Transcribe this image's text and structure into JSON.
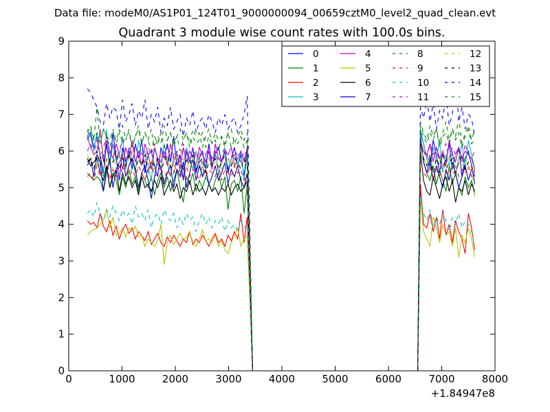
{
  "suptitle": "Data file: modeM0/AS1P01_124T01_9000000094_00659cztM0_level2_quad_clean.evt",
  "chart_data": {
    "type": "line",
    "title": "Quadrant 3 module wise count rates with 100.0s bins.",
    "xlabel": "",
    "ylabel": "",
    "x_offset_label": "+1.84947e8",
    "xlim": [
      0,
      8000
    ],
    "ylim": [
      0,
      9
    ],
    "xticks": [
      0,
      1000,
      2000,
      3000,
      4000,
      5000,
      6000,
      7000,
      8000
    ],
    "yticks": [
      0,
      1,
      2,
      3,
      4,
      5,
      6,
      7,
      8,
      9
    ],
    "grid": false,
    "legend_position": "top-right",
    "legend_columns": 4,
    "segment1": {
      "start": 350,
      "step": 60,
      "count": 51
    },
    "gap": {
      "x": [
        3450,
        3550,
        6450,
        6550
      ]
    },
    "segment2": {
      "start": 6600,
      "step": 60,
      "count": 18
    },
    "series": [
      {
        "name": "0",
        "color": "#0000ff",
        "dash": "solid",
        "seg1": [
          6.3,
          6.5,
          6.1,
          6.4,
          5.9,
          5.4,
          6.2,
          5.6,
          6.5,
          5.8,
          5.2,
          6.1,
          5.7,
          6.0,
          5.5,
          6.2,
          5.8,
          6.3,
          5.4,
          5.9,
          6.0,
          5.6,
          5.3,
          6.1,
          5.8,
          6.2,
          5.7,
          6.4,
          5.6,
          5.9,
          5.2,
          6.0,
          5.7,
          6.1,
          5.4,
          5.8,
          6.0,
          5.5,
          6.2,
          5.6,
          5.9,
          6.1,
          5.7,
          6.0,
          5.4,
          5.8,
          6.1,
          5.6,
          5.9,
          5.3,
          6.1
        ],
        "seg2": [
          6.5,
          6.2,
          5.8,
          5.6,
          6.3,
          5.9,
          5.4,
          6.0,
          5.7,
          6.2,
          5.5,
          5.9,
          6.1,
          5.3,
          5.8,
          6.0,
          5.6,
          5.1
        ]
      },
      {
        "name": "1",
        "color": "#008000",
        "dash": "solid",
        "seg1": [
          5.4,
          5.3,
          5.2,
          5.3,
          5.2,
          4.9,
          5.6,
          5.0,
          5.4,
          5.2,
          4.8,
          5.3,
          5.0,
          5.5,
          5.1,
          5.3,
          4.9,
          5.4,
          5.2,
          5.0,
          5.3,
          4.8,
          5.2,
          5.4,
          5.0,
          5.3,
          4.9,
          5.2,
          5.5,
          5.0,
          4.6,
          5.3,
          5.1,
          5.4,
          4.9,
          5.2,
          5.0,
          5.3,
          5.1,
          4.9,
          5.2,
          5.4,
          5.0,
          5.3,
          4.4,
          5.1,
          5.2,
          4.9,
          5.3,
          4.3,
          5.1
        ],
        "seg2": [
          6.3,
          5.7,
          5.4,
          5.2,
          5.6,
          5.1,
          5.5,
          5.2,
          4.9,
          5.6,
          5.1,
          5.4,
          5.0,
          4.8,
          5.3,
          5.0,
          5.2,
          4.8
        ]
      },
      {
        "name": "2",
        "color": "#ff0000",
        "dash": "solid",
        "seg1": [
          4.1,
          4.0,
          4.05,
          3.9,
          4.3,
          3.95,
          3.8,
          4.1,
          3.7,
          3.95,
          3.6,
          3.85,
          4.0,
          3.75,
          3.9,
          3.6,
          3.8,
          3.7,
          3.55,
          3.8,
          3.45,
          3.6,
          3.75,
          3.5,
          3.4,
          3.65,
          3.5,
          3.7,
          3.55,
          3.4,
          3.6,
          3.5,
          3.8,
          3.45,
          3.6,
          3.5,
          3.7,
          3.55,
          3.4,
          3.6,
          3.75,
          3.5,
          3.6,
          3.4,
          3.7,
          3.55,
          3.8,
          3.6,
          4.3,
          3.5,
          4.2
        ],
        "seg2": [
          5.1,
          4.0,
          3.9,
          4.3,
          3.8,
          4.2,
          3.6,
          4.4,
          3.7,
          4.0,
          3.5,
          4.1,
          3.8,
          3.6,
          3.2,
          4.3,
          3.9,
          3.3
        ]
      },
      {
        "name": "3",
        "color": "#00bfbf",
        "dash": "solid",
        "seg1": [
          6.6,
          6.4,
          6.0,
          6.5,
          5.8,
          5.3,
          6.6,
          5.6,
          6.2,
          5.7,
          5.9,
          6.4,
          5.5,
          6.1,
          5.8,
          5.4,
          6.3,
          5.9,
          6.0,
          5.6,
          5.2,
          6.1,
          5.8,
          5.5,
          6.2,
          5.7,
          5.3,
          5.9,
          6.0,
          5.4,
          5.6,
          6.1,
          5.8,
          5.5,
          6.0,
          5.7,
          5.3,
          5.9,
          5.8,
          5.6,
          6.0,
          5.4,
          5.7,
          6.1,
          5.5,
          5.8,
          5.9,
          5.6,
          6.0,
          5.2,
          5.9
        ],
        "seg2": [
          6.6,
          6.2,
          5.8,
          5.5,
          6.1,
          5.7,
          6.3,
          5.4,
          5.9,
          5.6,
          6.0,
          5.3,
          5.8,
          6.2,
          5.5,
          6.3,
          5.9,
          5.5
        ]
      },
      {
        "name": "4",
        "color": "#bf00bf",
        "dash": "solid",
        "seg1": [
          6.4,
          6.1,
          5.9,
          6.0,
          6.6,
          5.7,
          6.3,
          6.0,
          5.8,
          6.2,
          5.9,
          5.5,
          6.1,
          5.8,
          6.3,
          5.7,
          6.0,
          5.6,
          6.2,
          5.9,
          5.5,
          6.1,
          5.8,
          5.7,
          6.0,
          5.6,
          6.2,
          5.8,
          5.9,
          5.5,
          6.1,
          5.7,
          6.0,
          5.8,
          5.6,
          6.1,
          5.9,
          5.7,
          6.0,
          5.5,
          6.2,
          5.8,
          5.7,
          6.0,
          5.9,
          6.1,
          5.6,
          5.8,
          6.0,
          5.7,
          6.1
        ],
        "seg2": [
          6.3,
          6.0,
          5.9,
          6.2,
          5.7,
          6.1,
          5.8,
          6.0,
          5.6,
          6.3,
          5.9,
          5.7,
          6.1,
          5.8,
          6.0,
          5.9,
          5.8,
          5.5
        ]
      },
      {
        "name": "5",
        "color": "#bfbf00",
        "dash": "solid",
        "seg1": [
          3.7,
          3.8,
          3.85,
          3.9,
          4.0,
          4.1,
          4.4,
          3.9,
          4.2,
          3.7,
          3.75,
          3.9,
          3.65,
          3.9,
          3.8,
          3.95,
          3.65,
          3.7,
          3.4,
          3.6,
          3.5,
          3.4,
          3.55,
          4.0,
          2.9,
          3.5,
          3.7,
          3.45,
          3.6,
          3.75,
          3.55,
          3.65,
          3.8,
          3.5,
          3.4,
          3.6,
          3.85,
          3.55,
          3.6,
          3.5,
          3.7,
          3.4,
          3.55,
          3.3,
          3.2,
          3.5,
          3.7,
          3.9,
          3.4,
          3.6,
          3.7
        ],
        "seg2": [
          4.7,
          3.8,
          3.6,
          3.4,
          4.2,
          3.9,
          3.5,
          4.0,
          3.7,
          3.8,
          3.4,
          3.9,
          3.1,
          3.7,
          3.5,
          3.9,
          3.6,
          3.1
        ]
      },
      {
        "name": "6",
        "color": "#000000",
        "dash": "solid",
        "seg1": [
          5.8,
          5.6,
          5.7,
          5.8,
          5.4,
          5.2,
          5.6,
          5.0,
          5.3,
          5.5,
          4.9,
          5.4,
          5.1,
          5.3,
          5.0,
          5.2,
          4.8,
          5.3,
          5.0,
          5.1,
          4.9,
          5.2,
          5.0,
          5.3,
          4.8,
          5.0,
          5.2,
          4.9,
          5.1,
          4.7,
          5.0,
          4.9,
          5.2,
          4.8,
          5.1,
          4.9,
          5.0,
          4.8,
          5.1,
          4.9,
          5.0,
          4.8,
          5.0,
          4.9,
          5.1,
          4.8,
          5.0,
          5.1,
          4.9,
          5.0,
          5.2
        ],
        "seg2": [
          6.0,
          5.2,
          4.9,
          4.8,
          5.3,
          5.0,
          4.7,
          5.1,
          5.3,
          4.9,
          5.2,
          4.6,
          5.0,
          4.9,
          5.2,
          4.8,
          5.1,
          4.9
        ]
      },
      {
        "name": "7",
        "color": "#0000bf",
        "dash": "solid",
        "seg1": [
          5.6,
          5.8,
          5.3,
          5.9,
          5.7,
          4.9,
          5.4,
          5.8,
          5.0,
          5.5,
          5.7,
          5.9,
          5.3,
          5.6,
          5.8,
          5.5,
          5.0,
          5.4,
          5.6,
          5.2,
          4.7,
          5.3,
          5.8,
          5.5,
          5.1,
          5.4,
          5.6,
          5.0,
          5.5,
          5.3,
          5.7,
          5.0,
          5.4,
          5.8,
          5.2,
          5.6,
          5.3,
          5.5,
          5.1,
          5.3,
          5.6,
          5.2,
          5.4,
          5.7,
          5.1,
          5.5,
          5.3,
          5.6,
          5.2,
          5.0,
          5.4
        ],
        "seg2": [
          6.4,
          5.7,
          5.4,
          5.8,
          5.2,
          5.6,
          5.3,
          5.0,
          5.5,
          5.2,
          5.7,
          5.4,
          5.0,
          5.3,
          5.6,
          5.2,
          5.5,
          5.4
        ]
      },
      {
        "name": "8",
        "color": "#008000",
        "dash": "dashed",
        "seg1": [
          6.5,
          6.7,
          6.3,
          7.2,
          6.2,
          6.6,
          6.4,
          6.3,
          6.6,
          6.2,
          6.5,
          6.7,
          6.3,
          6.6,
          6.1,
          6.4,
          6.7,
          6.2,
          6.5,
          6.3,
          6.6,
          6.0,
          6.4,
          6.2,
          6.7,
          6.3,
          6.5,
          6.1,
          6.4,
          6.6,
          6.3,
          6.5,
          6.2,
          6.6,
          6.4,
          6.5,
          6.1,
          6.4,
          6.6,
          6.2,
          6.5,
          6.3,
          6.4,
          6.1,
          6.5,
          6.6,
          6.2,
          6.4,
          6.6,
          6.3,
          6.5
        ],
        "seg2": [
          6.8,
          6.5,
          6.3,
          6.7,
          6.4,
          6.6,
          6.2,
          6.5,
          6.8,
          6.3,
          6.6,
          6.4,
          6.9,
          6.2,
          6.5,
          6.7,
          6.3,
          6.6
        ]
      },
      {
        "name": "9",
        "color": "#ff0000",
        "dash": "dashed",
        "seg1": [
          5.3,
          5.4,
          5.2,
          5.6,
          5.3,
          5.5,
          5.8,
          5.2,
          5.5,
          5.3,
          5.6,
          5.4,
          5.7,
          5.2,
          5.5,
          5.3,
          5.6,
          5.4,
          5.2,
          5.5,
          5.7,
          5.3,
          5.4,
          5.6,
          5.2,
          5.5,
          5.3,
          5.7,
          5.4,
          5.5,
          5.2,
          5.6,
          5.3,
          5.5,
          5.4,
          5.2,
          5.6,
          5.3,
          5.5,
          5.4,
          5.3,
          5.6,
          5.2,
          5.5,
          5.4,
          5.3,
          5.6,
          5.4,
          5.5,
          5.2,
          5.4
        ],
        "seg2": [
          5.7,
          5.4,
          5.3,
          5.6,
          5.2,
          5.5,
          5.3,
          5.7,
          5.4,
          5.5,
          5.2,
          5.6,
          5.3,
          5.5,
          5.4,
          5.6,
          5.3,
          5.5
        ]
      },
      {
        "name": "10",
        "color": "#00bfbf",
        "dash": "dashed",
        "seg1": [
          4.3,
          4.4,
          4.2,
          4.6,
          4.3,
          4.1,
          4.4,
          4.2,
          4.5,
          4.3,
          4.1,
          4.4,
          4.2,
          4.3,
          4.0,
          4.5,
          4.2,
          4.3,
          4.1,
          4.4,
          3.9,
          4.2,
          4.3,
          4.0,
          4.4,
          4.2,
          4.1,
          4.3,
          3.9,
          4.2,
          4.0,
          4.3,
          4.1,
          4.2,
          3.8,
          4.1,
          4.3,
          4.0,
          4.2,
          3.9,
          4.1,
          4.0,
          4.2,
          3.8,
          4.1,
          3.9,
          4.0,
          3.8,
          4.1,
          3.9,
          4.0
        ],
        "seg2": [
          4.8,
          4.3,
          4.1,
          4.4,
          3.9,
          4.2,
          4.0,
          4.3,
          4.1,
          3.8,
          4.2,
          4.0,
          4.3,
          3.9,
          4.1,
          4.0,
          3.8,
          3.4
        ]
      },
      {
        "name": "11",
        "color": "#bf00bf",
        "dash": "dashed",
        "seg1": [
          6.0,
          6.2,
          5.9,
          6.3,
          5.8,
          6.1,
          6.4,
          5.9,
          6.2,
          5.8,
          6.0,
          6.3,
          5.7,
          6.1,
          5.9,
          6.2,
          5.8,
          6.0,
          5.7,
          6.1,
          5.9,
          6.2,
          5.6,
          6.0,
          5.8,
          6.1,
          5.9,
          5.7,
          6.0,
          5.8,
          6.2,
          5.9,
          5.7,
          6.1,
          5.8,
          6.0,
          5.6,
          5.9,
          6.1,
          5.8,
          6.0,
          5.7,
          5.9,
          6.1,
          5.8,
          5.6,
          6.0,
          5.9,
          5.7,
          6.0,
          5.9
        ],
        "seg2": [
          6.3,
          6.0,
          5.8,
          6.2,
          5.9,
          6.1,
          5.7,
          6.0,
          6.2,
          5.8,
          6.1,
          5.9,
          6.0,
          5.7,
          6.2,
          5.9,
          5.8,
          6.0
        ]
      },
      {
        "name": "12",
        "color": "#bfbf00",
        "dash": "dashed",
        "seg1": [
          5.9,
          5.7,
          6.0,
          5.6,
          5.9,
          6.1,
          5.7,
          5.8,
          5.5,
          6.0,
          5.7,
          5.9,
          5.6,
          5.8,
          6.0,
          5.5,
          5.8,
          5.7,
          5.9,
          5.6,
          5.8,
          5.5,
          5.7,
          5.9,
          5.6,
          5.8,
          5.5,
          5.7,
          5.9,
          5.6,
          5.8,
          5.7,
          5.5,
          5.8,
          5.6,
          5.9,
          5.7,
          5.5,
          5.8,
          5.6,
          5.7,
          5.9,
          5.5,
          5.7,
          5.8,
          5.6,
          5.9,
          5.5,
          5.7,
          5.8,
          5.6
        ],
        "seg2": [
          6.1,
          5.8,
          5.6,
          5.9,
          5.5,
          5.8,
          5.7,
          6.0,
          5.6,
          5.8,
          5.5,
          5.9,
          5.7,
          5.6,
          5.8,
          5.5,
          5.7,
          4.7
        ]
      },
      {
        "name": "13",
        "color": "#000000",
        "dash": "dashed",
        "seg1": [
          5.7,
          5.8,
          5.5,
          6.0,
          5.6,
          5.9,
          5.4,
          5.8,
          5.7,
          6.0,
          5.5,
          5.8,
          5.6,
          5.9,
          5.7,
          5.5,
          5.8,
          5.6,
          5.9,
          5.4,
          5.7,
          5.6,
          5.8,
          5.5,
          5.7,
          5.9,
          5.6,
          5.4,
          5.8,
          5.7,
          5.5,
          5.8,
          5.6,
          5.9,
          5.5,
          5.7,
          5.8,
          5.4,
          5.7,
          5.6,
          5.8,
          5.5,
          5.7,
          5.9,
          5.5,
          5.6,
          5.8,
          5.7,
          5.5,
          5.8,
          5.6
        ],
        "seg2": [
          6.2,
          5.8,
          5.6,
          5.9,
          5.4,
          5.8,
          5.6,
          5.9,
          5.5,
          5.7,
          5.8,
          5.4,
          5.7,
          5.9,
          5.5,
          5.7,
          5.6,
          5.3
        ]
      },
      {
        "name": "14",
        "color": "#0000ff",
        "dash": "dashed",
        "seg1": [
          7.7,
          7.6,
          7.4,
          7.2,
          6.8,
          6.7,
          7.3,
          6.9,
          7.2,
          7.1,
          6.6,
          7.4,
          6.8,
          7.0,
          7.3,
          6.7,
          7.1,
          6.9,
          7.4,
          6.6,
          7.0,
          6.8,
          7.2,
          6.5,
          6.9,
          6.7,
          7.2,
          6.6,
          6.8,
          7.0,
          6.4,
          6.9,
          6.7,
          7.1,
          6.5,
          6.8,
          6.9,
          6.6,
          7.0,
          6.8,
          6.5,
          6.9,
          6.7,
          7.0,
          6.6,
          6.8,
          6.9,
          6.5,
          6.7,
          7.0,
          7.5
        ],
        "seg2": [
          7.2,
          6.9,
          7.4,
          6.8,
          7.3,
          6.6,
          7.1,
          6.9,
          7.5,
          6.7,
          7.0,
          8.1,
          6.8,
          7.2,
          6.6,
          7.0,
          6.9,
          6.4
        ]
      },
      {
        "name": "15",
        "color": "#008000",
        "dash": "dashed",
        "seg1": [
          6.4,
          6.6,
          6.3,
          6.5,
          6.2,
          6.6,
          6.4,
          6.1,
          6.5,
          6.3,
          6.6,
          6.2,
          6.4,
          6.5,
          6.1,
          6.4,
          6.6,
          6.2,
          6.5,
          6.3,
          6.0,
          6.4,
          6.2,
          6.5,
          6.1,
          6.3,
          6.5,
          6.2,
          6.4,
          6.0,
          6.3,
          6.5,
          6.1,
          6.4,
          6.2,
          6.3,
          6.5,
          6.1,
          6.4,
          6.2,
          6.3,
          6.0,
          6.4,
          6.2,
          6.5,
          6.1,
          6.3,
          6.2,
          6.4,
          6.1,
          6.3
        ],
        "seg2": [
          6.7,
          6.4,
          6.2,
          6.5,
          6.3,
          6.6,
          6.1,
          6.4,
          6.5,
          6.2,
          6.6,
          6.3,
          6.5,
          6.1,
          6.4,
          6.6,
          6.2,
          6.3
        ]
      }
    ]
  }
}
